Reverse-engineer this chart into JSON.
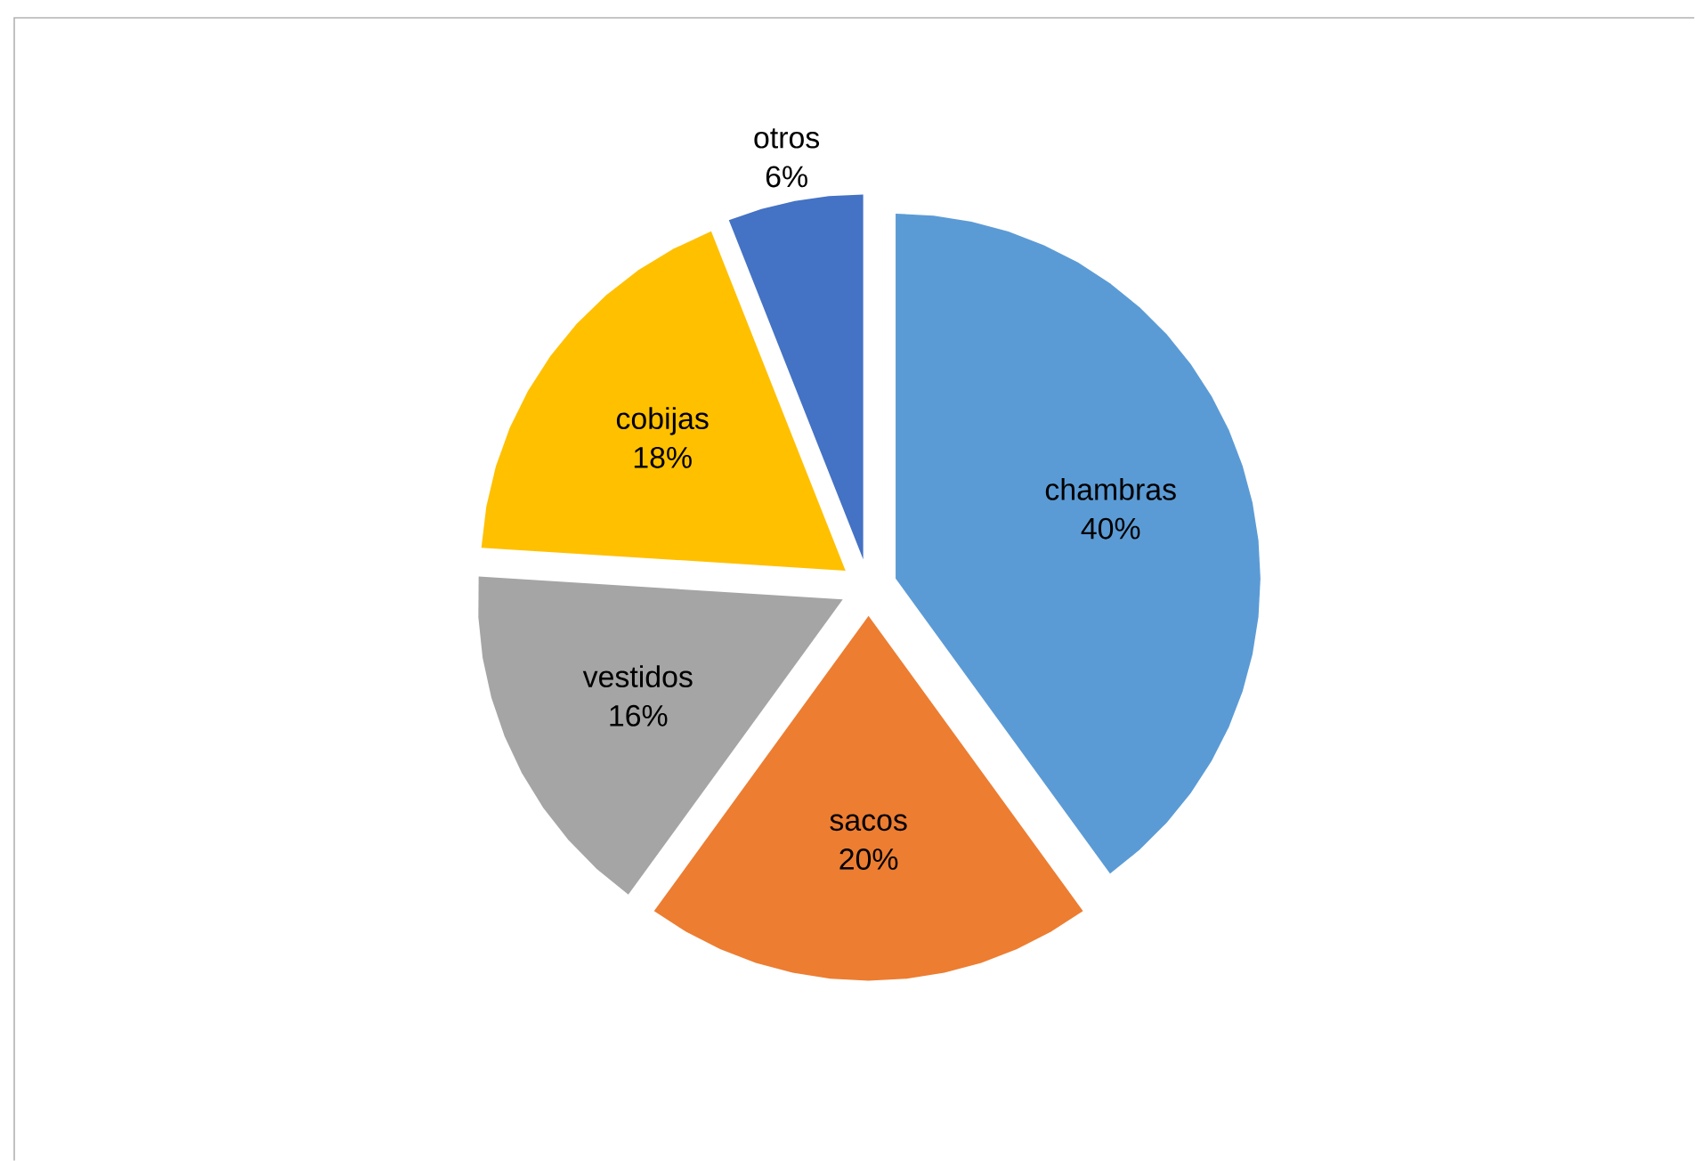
{
  "chart_data": {
    "type": "pie",
    "categories": [
      "chambras",
      "sacos",
      "vestidos",
      "cobijas",
      "otros"
    ],
    "values": [
      40,
      20,
      16,
      18,
      6
    ],
    "value_labels": [
      "40%",
      "20%",
      "16%",
      "18%",
      "6%"
    ],
    "colors": [
      "#5b9bd5",
      "#ed7d31",
      "#a5a5a5",
      "#ffc000",
      "#4472c4"
    ]
  }
}
